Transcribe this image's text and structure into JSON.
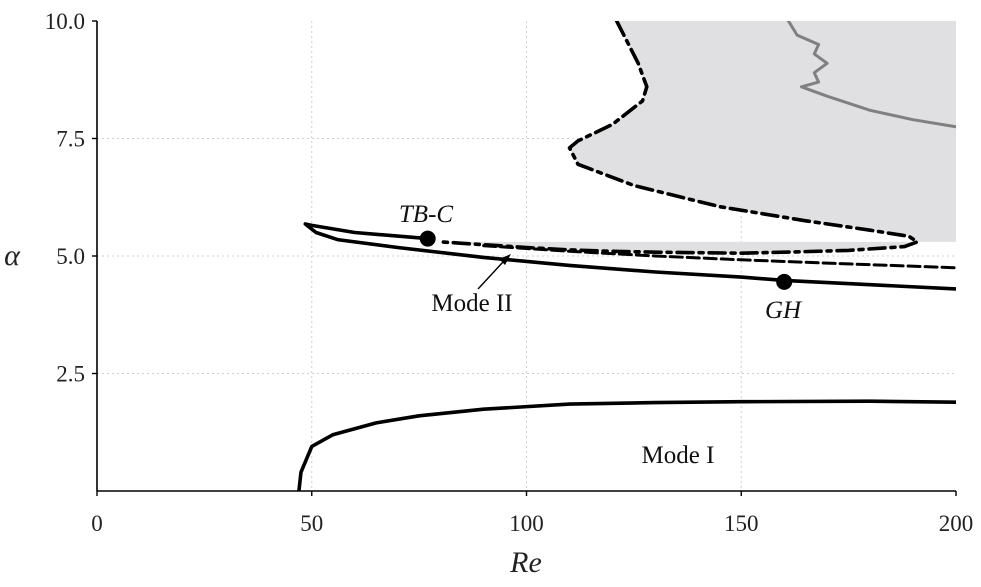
{
  "chart_data": {
    "type": "line",
    "xlabel": "Re",
    "ylabel": "α",
    "xlim": [
      0,
      200
    ],
    "ylim": [
      0,
      10
    ],
    "x_ticks": [
      "0",
      "50",
      "100",
      "150",
      "200"
    ],
    "y_ticks": [
      "2.5",
      "5.0",
      "7.5",
      "10.0"
    ],
    "x_tick_values": [
      0,
      50,
      100,
      150,
      200
    ],
    "y_tick_values": [
      2.5,
      5.0,
      7.5,
      10.0
    ],
    "grid": true,
    "colors": {
      "region_fill": "#e0e0e2",
      "curve": "#000000",
      "grey_curve": "#808080",
      "grid": "#cfcfcf"
    },
    "shaded_region": {
      "boundary": [
        [
          121,
          10.0
        ],
        [
          126,
          9.1
        ],
        [
          128,
          8.6
        ],
        [
          127,
          8.3
        ],
        [
          120,
          7.8
        ],
        [
          112,
          7.45
        ],
        [
          110,
          7.3
        ],
        [
          112,
          6.95
        ],
        [
          125,
          6.5
        ],
        [
          145,
          6.05
        ],
        [
          165,
          5.75
        ],
        [
          180,
          5.55
        ],
        [
          189,
          5.42
        ],
        [
          191,
          5.3
        ],
        [
          188,
          5.2
        ],
        [
          175,
          5.12
        ],
        [
          160,
          5.08
        ],
        [
          150,
          5.06
        ],
        [
          140,
          5.07
        ],
        [
          130,
          5.08
        ],
        [
          120,
          5.1
        ],
        [
          110,
          5.13
        ],
        [
          100,
          5.18
        ],
        [
          90,
          5.24
        ],
        [
          85,
          5.27
        ],
        [
          80,
          5.3
        ]
      ],
      "closing_points": [
        [
          80,
          5.3
        ],
        [
          200,
          5.3
        ],
        [
          200,
          10.0
        ]
      ]
    },
    "series": [
      {
        "style": "solid",
        "points": [
          [
            77,
            5.37
          ],
          [
            60,
            5.5
          ],
          [
            50,
            5.65
          ],
          [
            48.5,
            5.68
          ],
          [
            51,
            5.5
          ],
          [
            56,
            5.35
          ],
          [
            70,
            5.18
          ],
          [
            90,
            4.97
          ],
          [
            110,
            4.8
          ],
          [
            130,
            4.66
          ],
          [
            150,
            4.55
          ],
          [
            160,
            4.48
          ],
          [
            180,
            4.39
          ],
          [
            200,
            4.3
          ]
        ]
      },
      {
        "style": "dashed",
        "points": [
          [
            90,
            5.22
          ],
          [
            110,
            5.1
          ],
          [
            130,
            5.0
          ],
          [
            150,
            4.92
          ],
          [
            170,
            4.85
          ],
          [
            200,
            4.75
          ]
        ]
      },
      {
        "style": "dash-dot",
        "points": [
          [
            121,
            10.0
          ],
          [
            126,
            9.1
          ],
          [
            128,
            8.6
          ],
          [
            127,
            8.3
          ],
          [
            120,
            7.8
          ],
          [
            112,
            7.45
          ],
          [
            110,
            7.3
          ],
          [
            112,
            6.95
          ],
          [
            125,
            6.5
          ],
          [
            145,
            6.05
          ],
          [
            165,
            5.75
          ],
          [
            180,
            5.55
          ],
          [
            189,
            5.42
          ],
          [
            191,
            5.3
          ],
          [
            188,
            5.2
          ],
          [
            175,
            5.12
          ],
          [
            160,
            5.08
          ],
          [
            150,
            5.06
          ],
          [
            140,
            5.07
          ],
          [
            130,
            5.08
          ],
          [
            120,
            5.1
          ],
          [
            110,
            5.13
          ],
          [
            100,
            5.18
          ],
          [
            90,
            5.24
          ],
          [
            85,
            5.27
          ],
          [
            80,
            5.3
          ]
        ]
      },
      {
        "style": "grey",
        "points": [
          [
            161,
            10.0
          ],
          [
            163,
            9.7
          ],
          [
            168,
            9.5
          ],
          [
            167,
            9.3
          ],
          [
            170,
            9.1
          ],
          [
            167,
            8.9
          ],
          [
            168,
            8.7
          ],
          [
            164,
            8.6
          ],
          [
            170,
            8.4
          ],
          [
            180,
            8.1
          ],
          [
            190,
            7.9
          ],
          [
            200,
            7.75
          ]
        ]
      },
      {
        "style": "solid",
        "points": [
          [
            47,
            0.0
          ],
          [
            47.5,
            0.4
          ],
          [
            50,
            0.95
          ],
          [
            55,
            1.2
          ],
          [
            65,
            1.45
          ],
          [
            75,
            1.6
          ],
          [
            90,
            1.74
          ],
          [
            110,
            1.85
          ],
          [
            130,
            1.88
          ],
          [
            150,
            1.9
          ],
          [
            180,
            1.91
          ],
          [
            200,
            1.89
          ]
        ]
      }
    ],
    "markers": [
      {
        "label": "TB-C",
        "x": 77,
        "y": 5.37
      },
      {
        "label": "GH",
        "x": 160,
        "y": 4.45
      }
    ],
    "annotations": {
      "mode_ii": "Mode II",
      "mode_i": "Mode I",
      "tbc": "TB-C",
      "gh": "GH"
    }
  }
}
